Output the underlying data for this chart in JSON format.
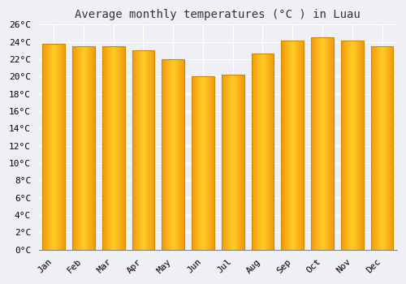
{
  "title": "Average monthly temperatures (°C ) in Luau",
  "months": [
    "Jan",
    "Feb",
    "Mar",
    "Apr",
    "May",
    "Jun",
    "Jul",
    "Aug",
    "Sep",
    "Oct",
    "Nov",
    "Dec"
  ],
  "values": [
    23.8,
    23.5,
    23.5,
    23.0,
    22.0,
    20.0,
    20.2,
    22.7,
    24.2,
    24.5,
    24.2,
    23.5
  ],
  "bar_color": "#FFAA00",
  "bar_edge_color": "#CC8800",
  "background_color": "#EEF0F5",
  "plot_bg_color": "#EEF0F5",
  "grid_color": "#FFFFFF",
  "ylim": [
    0,
    26
  ],
  "ytick_step": 2,
  "title_fontsize": 10,
  "tick_fontsize": 8,
  "font_family": "monospace",
  "bar_width": 0.75
}
